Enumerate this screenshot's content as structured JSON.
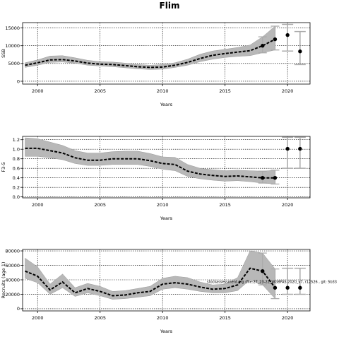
{
  "figure": {
    "title": "Flim"
  },
  "colors": {
    "band": "#b8b8b8",
    "band_edge": "#9a9a9a",
    "line": "#000000",
    "proj": "#aaaaaa",
    "grid": "#000000"
  },
  "annotation": "stockassessment.org (file:27_23-22_WGBFAS 2020_v7, r12526 , git: 5b33",
  "chart_data": [
    {
      "type": "line",
      "title": "",
      "xlabel": "Years",
      "ylabel": "SSB",
      "xlim": [
        1998.8,
        2021.8
      ],
      "ylim": [
        -800,
        16500
      ],
      "xticks": [
        2000,
        2005,
        2010,
        2015,
        2020
      ],
      "yticks": [
        0,
        5000,
        10000,
        15000
      ],
      "ytick_labels": [
        "0",
        "5000",
        "10000",
        "15000"
      ],
      "grid": true,
      "years": [
        1999,
        2000,
        2001,
        2002,
        2003,
        2004,
        2005,
        2006,
        2007,
        2008,
        2009,
        2010,
        2011,
        2012,
        2013,
        2014,
        2015,
        2016,
        2017,
        2018,
        2019
      ],
      "estimate": [
        4500,
        5200,
        6000,
        6100,
        5700,
        5100,
        4800,
        4700,
        4400,
        4100,
        3900,
        4000,
        4500,
        5300,
        6400,
        7300,
        7800,
        8200,
        8600,
        10000,
        11800
      ],
      "lower": [
        3900,
        4500,
        5300,
        5400,
        5100,
        4500,
        4300,
        4100,
        3800,
        3500,
        3300,
        3400,
        3900,
        4500,
        5500,
        6200,
        6700,
        7000,
        7200,
        8000,
        8800
      ],
      "upper": [
        5200,
        6000,
        7100,
        7200,
        6600,
        5900,
        5500,
        5400,
        5100,
        4700,
        4500,
        4700,
        5200,
        6200,
        7600,
        8500,
        9000,
        9500,
        10200,
        12500,
        15500
      ],
      "forecast": [
        {
          "year": 2020,
          "value": 13000,
          "low": 8500,
          "high": 16000
        },
        {
          "year": 2021,
          "value": 8400,
          "low": 4700,
          "high": 14000
        }
      ]
    },
    {
      "type": "line",
      "title": "",
      "xlabel": "Years",
      "ylabel": "F3-5",
      "xlim": [
        1998.8,
        2021.8
      ],
      "ylim": [
        -0.02,
        1.27
      ],
      "xticks": [
        2000,
        2005,
        2010,
        2015,
        2020
      ],
      "yticks": [
        0.0,
        0.2,
        0.4,
        0.6,
        0.8,
        1.0,
        1.2
      ],
      "ytick_labels": [
        "0.0",
        "0.2",
        "0.4",
        "0.6",
        "0.8",
        "1.0",
        "1.2"
      ],
      "grid": true,
      "years": [
        1999,
        2000,
        2001,
        2002,
        2003,
        2004,
        2005,
        2006,
        2007,
        2008,
        2009,
        2010,
        2011,
        2012,
        2013,
        2014,
        2015,
        2016,
        2017,
        2018,
        2019
      ],
      "estimate": [
        1.02,
        1.02,
        0.97,
        0.92,
        0.82,
        0.77,
        0.77,
        0.8,
        0.8,
        0.8,
        0.76,
        0.7,
        0.68,
        0.54,
        0.48,
        0.45,
        0.43,
        0.44,
        0.42,
        0.4,
        0.4
      ],
      "lower": [
        0.85,
        0.85,
        0.82,
        0.78,
        0.7,
        0.66,
        0.66,
        0.68,
        0.68,
        0.68,
        0.64,
        0.58,
        0.55,
        0.43,
        0.38,
        0.35,
        0.33,
        0.34,
        0.32,
        0.29,
        0.27
      ],
      "upper": [
        1.24,
        1.22,
        1.15,
        1.08,
        0.97,
        0.92,
        0.92,
        0.95,
        0.96,
        0.96,
        0.91,
        0.84,
        0.83,
        0.68,
        0.6,
        0.57,
        0.55,
        0.56,
        0.55,
        0.54,
        0.56
      ],
      "forecast": [
        {
          "year": 2020,
          "value": 1.01,
          "low": 0.6,
          "high": 1.25
        },
        {
          "year": 2021,
          "value": 1.01,
          "low": 0.6,
          "high": 1.25
        }
      ]
    },
    {
      "type": "line",
      "title": "",
      "xlabel": "Years",
      "ylabel": "Recruits (age 1)",
      "xlim": [
        1998.8,
        2021.8
      ],
      "ylim": [
        -3000,
        82000
      ],
      "xticks": [
        2000,
        2005,
        2010,
        2015,
        2020
      ],
      "yticks": [
        0,
        20000,
        40000,
        60000,
        80000
      ],
      "ytick_labels": [
        "0",
        "20000",
        "40000",
        "60000",
        "80000"
      ],
      "grid": true,
      "years": [
        1999,
        2000,
        2001,
        2002,
        2003,
        2004,
        2005,
        2006,
        2007,
        2008,
        2009,
        2010,
        2011,
        2012,
        2013,
        2014,
        2015,
        2016,
        2017,
        2018,
        2019
      ],
      "estimate": [
        52000,
        45000,
        26000,
        37000,
        22000,
        28000,
        24000,
        18000,
        19000,
        22000,
        24000,
        34000,
        36000,
        34000,
        30000,
        27000,
        28000,
        33000,
        56000,
        52000,
        29000
      ],
      "lower": [
        42000,
        36000,
        20000,
        29000,
        17000,
        22000,
        18000,
        13000,
        14000,
        16000,
        18000,
        27000,
        29000,
        27000,
        24000,
        22000,
        22000,
        25000,
        40000,
        33000,
        14000
      ],
      "upper": [
        70000,
        58000,
        34000,
        48000,
        29000,
        35000,
        31000,
        24000,
        25000,
        28000,
        31000,
        42000,
        45000,
        43000,
        37000,
        33000,
        34000,
        43000,
        80000,
        77000,
        55000
      ],
      "forecast": [
        {
          "year": 2020,
          "value": 29000,
          "low": 20000,
          "high": 56000
        },
        {
          "year": 2021,
          "value": 29000,
          "low": 20000,
          "high": 56000
        }
      ]
    }
  ]
}
